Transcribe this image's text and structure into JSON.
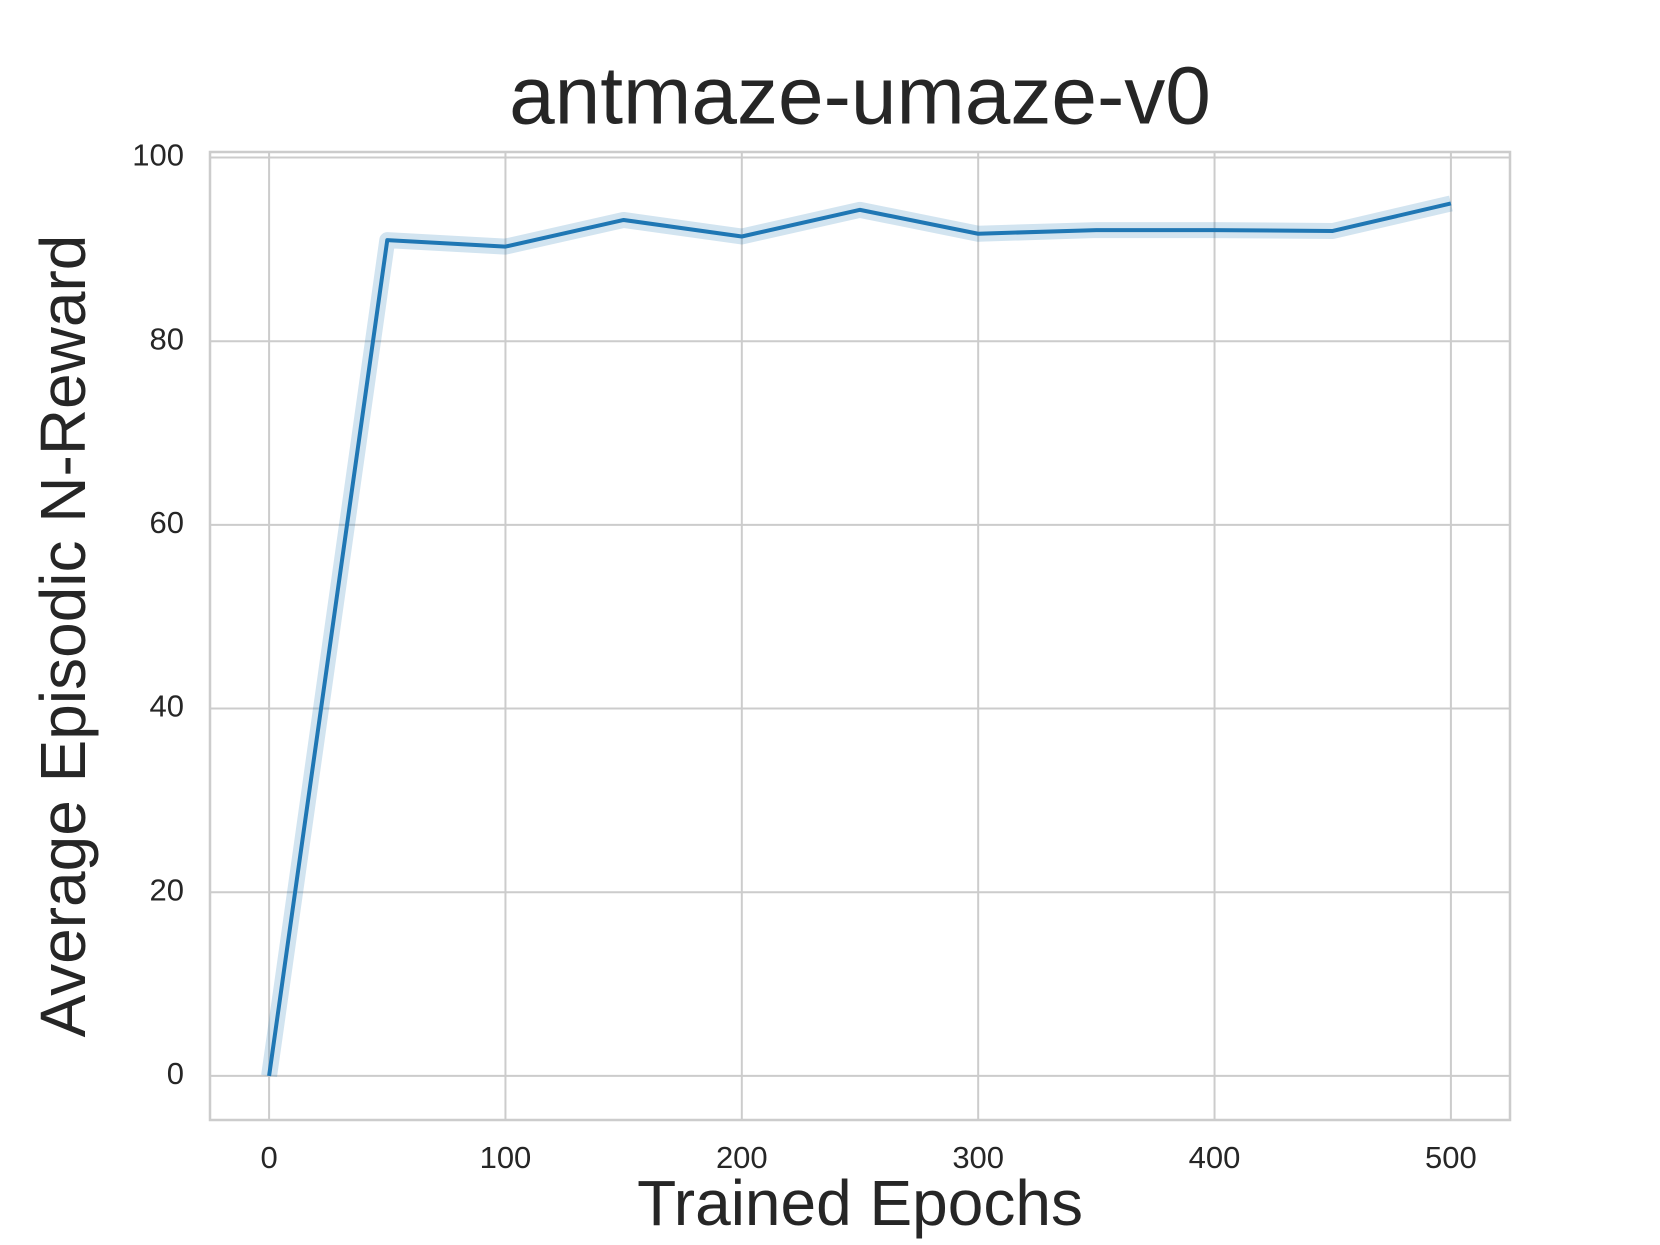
{
  "chart_data": {
    "type": "line",
    "title": "antmaze-umaze-v0",
    "x_label": "Trained Epochs",
    "y_label": "Average Episodic N-Reward",
    "x": [
      0,
      50,
      100,
      150,
      200,
      250,
      300,
      350,
      400,
      450,
      500
    ],
    "series": [
      {
        "color": "#1f77b4",
        "values": [
          0,
          91.0,
          90.3,
          93.2,
          91.4,
          94.3,
          91.7,
          92.1,
          92.1,
          92.0,
          95.0
        ]
      }
    ],
    "xlim": [
      -25,
      525
    ],
    "xticks": [
      0,
      100,
      200,
      300,
      400,
      500
    ],
    "ylim": [
      -4.8,
      100.6
    ],
    "yticks": [
      0,
      20,
      40,
      60,
      80,
      100
    ],
    "grid": true
  }
}
